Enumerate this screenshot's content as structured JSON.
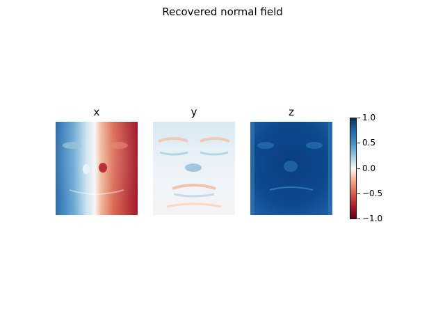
{
  "title": "Recovered normal field",
  "chart_data": {
    "type": "heatmap",
    "title": "Recovered normal field",
    "panels": [
      {
        "title": "x",
        "component": "x",
        "range": [
          -1.0,
          1.0
        ]
      },
      {
        "title": "y",
        "component": "y",
        "range": [
          -1.0,
          1.0
        ]
      },
      {
        "title": "z",
        "component": "z",
        "range": [
          -1.0,
          1.0
        ]
      }
    ],
    "colormap": "RdBu",
    "colorbar": {
      "vmin": -1.0,
      "vmax": 1.0,
      "ticks": [
        1.0,
        0.5,
        0.0,
        -0.5,
        -1.0
      ],
      "tick_labels": [
        "1.0",
        "0.5",
        "0.0",
        "−0.5",
        "−1.0"
      ]
    }
  }
}
